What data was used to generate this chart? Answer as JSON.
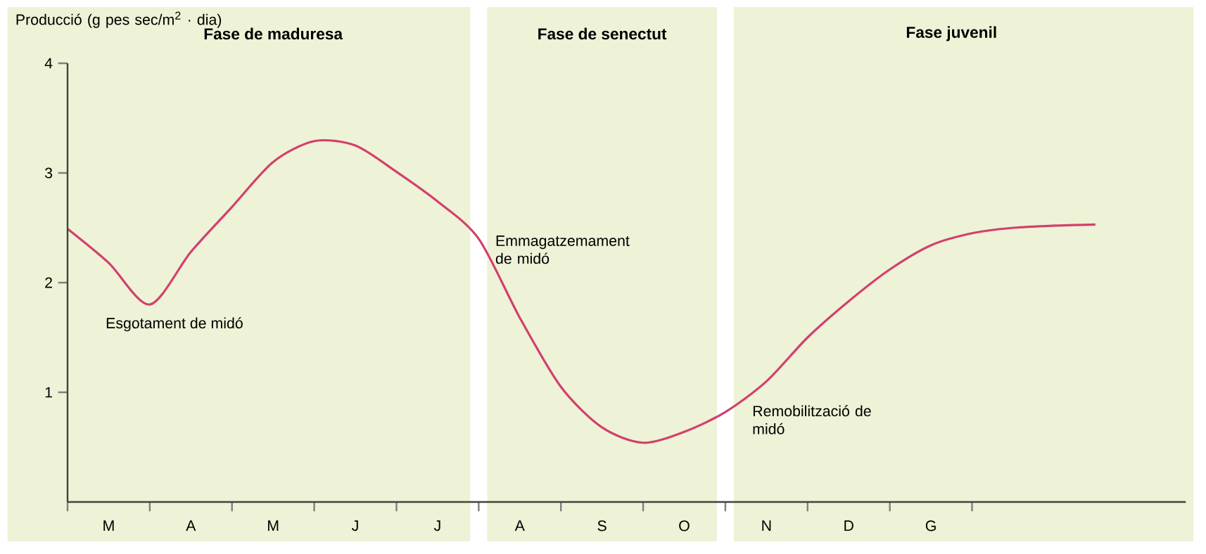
{
  "chart_data": {
    "type": "line",
    "ylabel": "Producció (g pes sec/m$^{2}$ · dia)",
    "categories": [
      null,
      "M",
      null,
      "A",
      null,
      "M",
      null,
      "J",
      null,
      "J",
      null,
      "A",
      null,
      "S",
      null,
      "O",
      null,
      "N",
      null,
      "D",
      null,
      "G",
      null,
      null,
      null,
      null,
      null,
      null
    ],
    "series": [
      {
        "color": "#d2406c",
        "values": [
          2.49,
          2.18,
          1.8,
          2.28,
          2.69,
          3.1,
          3.29,
          3.25,
          3.01,
          2.74,
          2.4,
          1.68,
          1.05,
          0.68,
          0.54,
          0.64,
          0.82,
          1.1,
          1.5,
          1.83,
          2.12,
          2.34,
          2.45,
          2.5,
          2.52,
          2.53,
          null,
          null
        ]
      }
    ],
    "ylim": [
      0,
      4
    ],
    "yticks": [
      1,
      2,
      3,
      4
    ],
    "annotations": [
      "Fase de maduresa",
      "Fase de senectut",
      "Fase juvenil",
      "Esgotament de midó",
      "Emmagatzemament de midó",
      "Remobilització de midó"
    ],
    "marker": "none",
    "line_style": "solid"
  }
}
